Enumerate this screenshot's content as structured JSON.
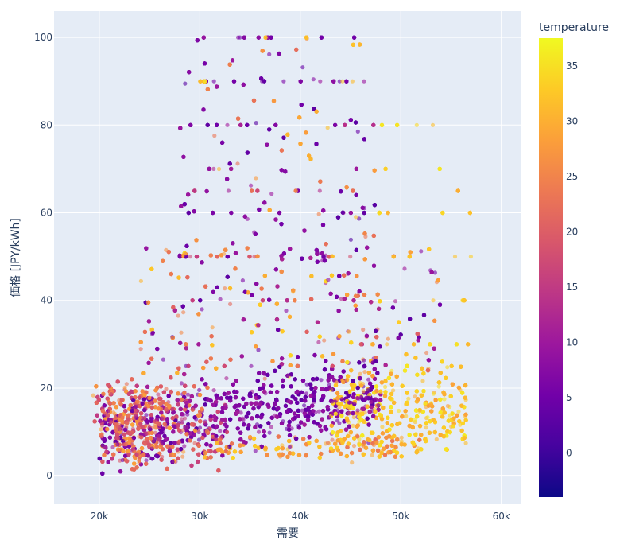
{
  "chart_data": {
    "type": "scatter",
    "xlabel": "需要",
    "ylabel": "価格 [JPY/kWh]",
    "xlim": [
      15500,
      62000
    ],
    "ylim": [
      -6.5,
      106
    ],
    "x_ticks": [
      {
        "value": 20000,
        "label": "20k"
      },
      {
        "value": 30000,
        "label": "30k"
      },
      {
        "value": 40000,
        "label": "40k"
      },
      {
        "value": 50000,
        "label": "50k"
      },
      {
        "value": 60000,
        "label": "60k"
      }
    ],
    "y_ticks": [
      0,
      20,
      40,
      60,
      80,
      100
    ],
    "colorbar": {
      "title": "temperature",
      "range": [
        -4,
        37.5
      ],
      "ticks": [
        0,
        5,
        10,
        15,
        20,
        25,
        30,
        35
      ]
    },
    "color_scale": [
      "#0d0887",
      "#46039f",
      "#7201a8",
      "#9c179e",
      "#bd3786",
      "#d8576b",
      "#ed7953",
      "#fb9f3a",
      "#fdca26",
      "#f0f921"
    ],
    "point_opacity": 0.6,
    "n_points_approx": 40000,
    "price_bands": [
      100,
      90,
      80,
      70,
      65,
      60,
      50,
      40,
      30,
      25
    ]
  }
}
